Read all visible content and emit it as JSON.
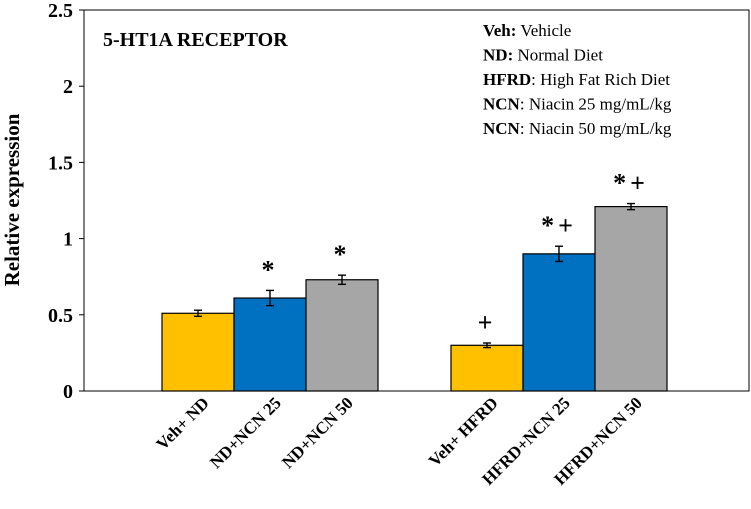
{
  "chart_data": {
    "type": "bar",
    "title": "5-HT1A RECEPTOR",
    "ylabel": "Relative expression",
    "xlabel": "",
    "ylim": [
      0,
      2.5
    ],
    "yticks": [
      "0",
      "0.5",
      "1",
      "1.5",
      "2",
      "2.5"
    ],
    "grid": false,
    "bars": [
      {
        "label": "Veh+ ND",
        "value": 0.51,
        "error": 0.02,
        "color": "#FFC000",
        "marks": ""
      },
      {
        "label": "ND+NCN 25",
        "value": 0.61,
        "error": 0.05,
        "color": "#0070C0",
        "marks": "*"
      },
      {
        "label": "ND+NCN 50",
        "value": 0.73,
        "error": 0.03,
        "color": "#A6A6A6",
        "marks": "*"
      },
      {
        "label": "Veh+ HFRD",
        "value": 0.3,
        "error": 0.015,
        "color": "#FFC000",
        "marks": "+"
      },
      {
        "label": "HFRD+NCN 25",
        "value": 0.9,
        "error": 0.05,
        "color": "#0070C0",
        "marks": "*+"
      },
      {
        "label": "HFRD+NCN 50",
        "value": 1.21,
        "error": 0.02,
        "color": "#A6A6A6",
        "marks": "*+"
      }
    ]
  },
  "legend": [
    {
      "abbr": "Veh",
      "sep": ":",
      "text": " Vehicle"
    },
    {
      "abbr": "ND",
      "sep": ":",
      "text": " Normal Diet"
    },
    {
      "abbr": "HFRD",
      "sep": ":",
      "text": " High Fat Rich Diet"
    },
    {
      "abbr": "NCN",
      "sep": ":",
      "text": " Niacin 25 mg/mL/kg"
    },
    {
      "abbr": "NCN",
      "sep": ":",
      "text": " Niacin 50 mg/mL/kg"
    }
  ]
}
